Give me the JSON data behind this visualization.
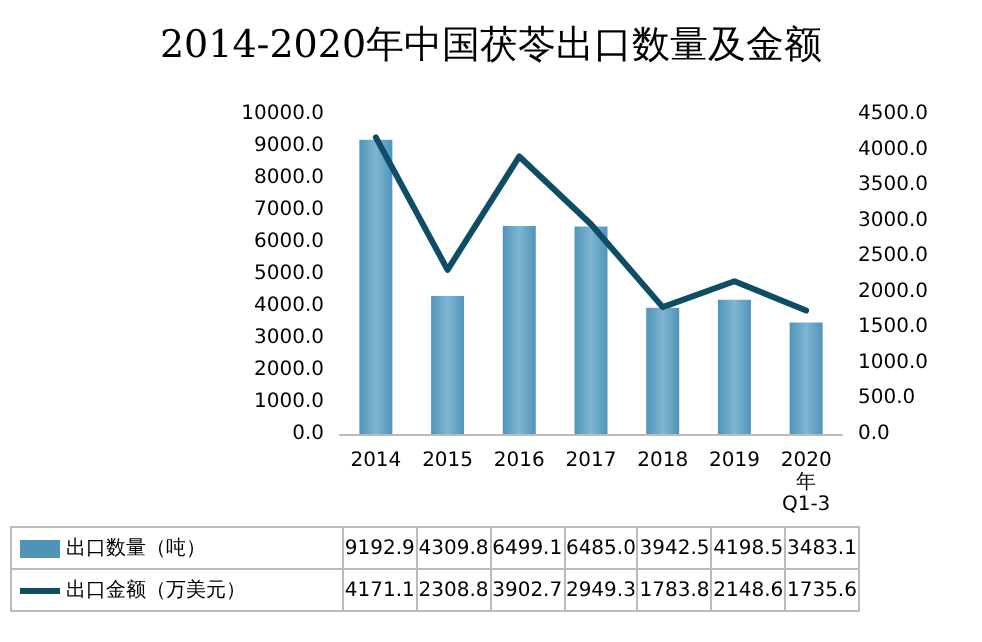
{
  "chart_data": {
    "type": "bar",
    "title": "2014-2020年中国茯苓出口数量及金额",
    "categories": [
      "2014",
      "2015",
      "2016",
      "2017",
      "2018",
      "2019",
      "2020年Q1-3"
    ],
    "series": [
      {
        "name": "出口数量（吨）",
        "color": "#4f94b8",
        "values": [
          9192.9,
          4309.8,
          6499.1,
          6485.0,
          3942.5,
          4198.5,
          3483.1
        ],
        "value_labels": [
          "9192.9",
          "4309.8",
          "6499.1",
          "6485.0",
          "3942.5",
          "4198.5",
          "3483.1"
        ]
      },
      {
        "name": "出口金额（万美元）",
        "type": "line",
        "axis": "y2",
        "color": "#0f4d67",
        "values": [
          4171.1,
          2308.8,
          3902.7,
          2949.3,
          1783.8,
          2148.6,
          1735.6
        ],
        "value_labels": [
          "4171.1",
          "2308.8",
          "3902.7",
          "2949.3",
          "1783.8",
          "2148.6",
          "1735.6"
        ]
      }
    ],
    "ylim": [
      0,
      10000
    ],
    "yticks": [
      {
        "value": 0,
        "label": "0.0"
      },
      {
        "value": 1000,
        "label": "1000.0"
      },
      {
        "value": 2000,
        "label": "2000.0"
      },
      {
        "value": 3000,
        "label": "3000.0"
      },
      {
        "value": 4000,
        "label": "4000.0"
      },
      {
        "value": 5000,
        "label": "5000.0"
      },
      {
        "value": 6000,
        "label": "6000.0"
      },
      {
        "value": 7000,
        "label": "7000.0"
      },
      {
        "value": 8000,
        "label": "8000.0"
      },
      {
        "value": 9000,
        "label": "9000.0"
      },
      {
        "value": 10000,
        "label": "10000.0"
      }
    ],
    "y2lim": [
      0,
      4500
    ],
    "y2ticks": [
      {
        "value": 0,
        "label": "0.0"
      },
      {
        "value": 500,
        "label": "500.0"
      },
      {
        "value": 1000,
        "label": "1000.0"
      },
      {
        "value": 1500,
        "label": "1500.0"
      },
      {
        "value": 2000,
        "label": "2000.0"
      },
      {
        "value": 2500,
        "label": "2500.0"
      },
      {
        "value": 3000,
        "label": "3000.0"
      },
      {
        "value": 3500,
        "label": "3500.0"
      },
      {
        "value": 4000,
        "label": "4000.0"
      },
      {
        "value": 4500,
        "label": "4500.0"
      }
    ],
    "grid": false,
    "legend": "bottom left",
    "marker": "none",
    "line_style": "solid"
  }
}
